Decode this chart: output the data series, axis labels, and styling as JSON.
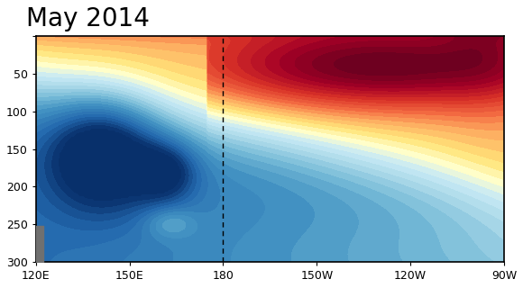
{
  "title": "May 2014",
  "title_fontsize": 20,
  "lon_min": 120,
  "lon_max": 270,
  "depth_min": 0,
  "depth_max": 300,
  "dashed_line_lon": 180,
  "xtick_positions": [
    120,
    150,
    180,
    210,
    240,
    270
  ],
  "xtick_labels": [
    "120E",
    "150E",
    "180",
    "150W",
    "120W",
    "90W"
  ],
  "ytick_positions": [
    0,
    50,
    100,
    150,
    200,
    250,
    300
  ],
  "vmin": -3,
  "vmax": 5,
  "background_color": "#ffffff"
}
